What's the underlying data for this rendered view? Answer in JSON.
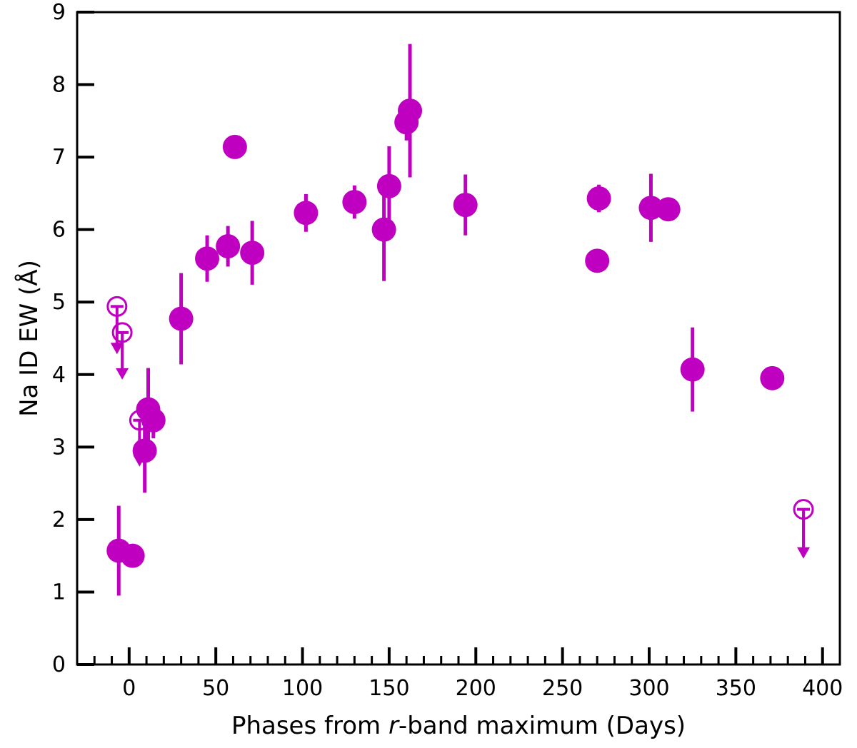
{
  "chart_data": {
    "type": "scatter",
    "xlabel_parts": [
      "Phases from ",
      "r",
      "-band maximum (Days)"
    ],
    "ylabel": "Na ID EW (Å)",
    "xlim": [
      -30,
      410
    ],
    "ylim": [
      0,
      9
    ],
    "xticks": [
      0,
      50,
      100,
      150,
      200,
      250,
      300,
      350,
      400
    ],
    "yticks": [
      0,
      1,
      2,
      3,
      4,
      5,
      6,
      7,
      8,
      9
    ],
    "x_minor_step": 10,
    "grid": false,
    "legend": "none",
    "color": "#c000c0",
    "detections": [
      {
        "x": -6,
        "y": 1.57,
        "err": 0.62
      },
      {
        "x": 2,
        "y": 1.5,
        "err": 0
      },
      {
        "x": 9,
        "y": 2.95,
        "err": 0.58
      },
      {
        "x": 11,
        "y": 3.52,
        "err": 0.57
      },
      {
        "x": 14,
        "y": 3.37,
        "err": 0.25
      },
      {
        "x": 30,
        "y": 4.77,
        "err": 0.63
      },
      {
        "x": 45,
        "y": 5.6,
        "err": 0.32
      },
      {
        "x": 57,
        "y": 5.77,
        "err": 0.28
      },
      {
        "x": 61,
        "y": 7.14,
        "err": 0
      },
      {
        "x": 71,
        "y": 5.68,
        "err": 0.44
      },
      {
        "x": 102,
        "y": 6.23,
        "err": 0.26
      },
      {
        "x": 130,
        "y": 6.38,
        "err": 0.23
      },
      {
        "x": 147,
        "y": 6.0,
        "err": 0.71
      },
      {
        "x": 150,
        "y": 6.6,
        "err": 0.55
      },
      {
        "x": 160,
        "y": 7.48,
        "err": 0.25
      },
      {
        "x": 162,
        "y": 7.64,
        "err": 0.92
      },
      {
        "x": 194,
        "y": 6.34,
        "err": 0.42
      },
      {
        "x": 270,
        "y": 5.57,
        "err": 0
      },
      {
        "x": 271,
        "y": 6.43,
        "err": 0.19
      },
      {
        "x": 301,
        "y": 6.3,
        "err": 0.47
      },
      {
        "x": 311,
        "y": 6.28,
        "err": 0
      },
      {
        "x": 325,
        "y": 4.07,
        "err": 0.58
      },
      {
        "x": 371,
        "y": 3.95,
        "err": 0
      }
    ],
    "upper_limits": [
      {
        "x": -7,
        "y": 4.94,
        "arrow_to": 4.3
      },
      {
        "x": -4,
        "y": 4.58,
        "arrow_to": 3.95
      },
      {
        "x": 6,
        "y": 3.37,
        "arrow_to": 2.75
      },
      {
        "x": 389,
        "y": 2.14,
        "arrow_to": 1.48
      }
    ]
  }
}
